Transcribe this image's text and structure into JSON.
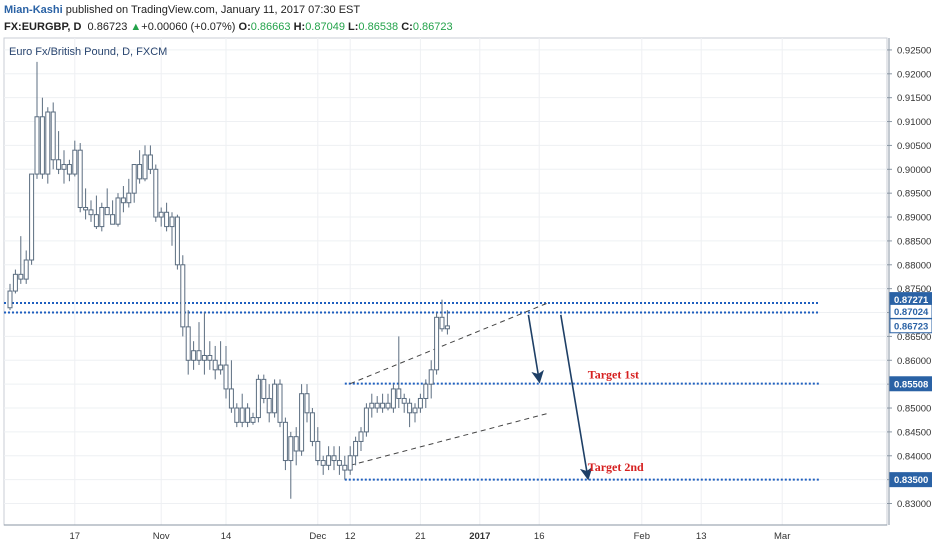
{
  "header": {
    "author": "Mian-Kashi",
    "published": "published on TradingView.com, January 11, 2017 07:30 EST",
    "symbol": "FX:EURGBP, D",
    "last": "0.86723",
    "change": "+0.00060 (+0.07%)",
    "o_label": "O:",
    "o": "0.86663",
    "h_label": "H:",
    "h": "0.87049",
    "l_label": "L:",
    "l": "0.86538",
    "c_label": "C:",
    "c": "0.86723"
  },
  "chart_title": "Euro Fx/British Pound, D, FXCM",
  "colors": {
    "candle_up": "#ffffff",
    "candle_down": "#ffffff",
    "candle_stroke": "#5b6d80",
    "level_line": "#1f5fbf",
    "arrow": "#1e3f66",
    "annotation_text": "#d62020",
    "price_tag": "#2a62a5"
  },
  "chart_data": {
    "type": "candlestick",
    "title": "Euro Fx/British Pound, D, FXCM",
    "y_ticks": [
      "0.92500",
      "0.92000",
      "0.91500",
      "0.91000",
      "0.90500",
      "0.90000",
      "0.89500",
      "0.89000",
      "0.88500",
      "0.88000",
      "0.87500",
      "0.87000",
      "0.86500",
      "0.86000",
      "0.85500",
      "0.85000",
      "0.84500",
      "0.84000",
      "0.83500",
      "0.83000"
    ],
    "ylim": [
      0.8255,
      0.9275
    ],
    "x_labels": [
      "17",
      "Nov",
      "14",
      "Dec",
      "12",
      "21",
      "2017",
      "16",
      "Feb",
      "13",
      "Mar"
    ],
    "x_label_positions_idx": [
      12,
      28,
      40,
      57,
      63,
      76,
      87,
      98,
      117,
      128,
      143
    ],
    "price_tags": [
      {
        "label": "0.87271",
        "value": 0.87271,
        "filled": true
      },
      {
        "label": "0.87024",
        "value": 0.87024,
        "filled": false
      },
      {
        "label": "0.86723",
        "value": 0.86723,
        "filled": false
      },
      {
        "label": "0.85508",
        "value": 0.85508,
        "filled": true
      },
      {
        "label": "0.83500",
        "value": 0.835,
        "filled": true
      }
    ],
    "levels": [
      {
        "value": 0.872,
        "x_start_idx": -1,
        "x_end_idx": 150
      },
      {
        "value": 0.87,
        "x_start_idx": -1,
        "x_end_idx": 150
      },
      {
        "value": 0.8551,
        "x_start_idx": 62,
        "x_end_idx": 150
      },
      {
        "value": 0.835,
        "x_start_idx": 62,
        "x_end_idx": 150
      }
    ],
    "channel": {
      "upper": [
        [
          63,
          0.8551
        ],
        [
          100,
          0.8722
        ]
      ],
      "lower": [
        [
          63,
          0.838
        ],
        [
          100,
          0.849
        ]
      ]
    },
    "annotations": [
      {
        "text": "Target 1st",
        "idx": 107,
        "value": 0.8562
      },
      {
        "text": "Target 2nd",
        "idx": 107,
        "value": 0.8368
      }
    ],
    "arrows": [
      {
        "from": [
          96,
          0.8695
        ],
        "to": [
          98,
          0.8558
        ]
      },
      {
        "from": [
          102,
          0.8695
        ],
        "to": [
          107,
          0.8355
        ]
      }
    ],
    "candles": [
      [
        0.871,
        0.876,
        0.8705,
        0.8745
      ],
      [
        0.8745,
        0.879,
        0.874,
        0.878
      ],
      [
        0.878,
        0.886,
        0.876,
        0.877
      ],
      [
        0.877,
        0.883,
        0.876,
        0.881
      ],
      [
        0.881,
        0.899,
        0.88,
        0.899
      ],
      [
        0.899,
        0.9225,
        0.898,
        0.911
      ],
      [
        0.911,
        0.915,
        0.898,
        0.899
      ],
      [
        0.899,
        0.913,
        0.897,
        0.912
      ],
      [
        0.912,
        0.914,
        0.9,
        0.902
      ],
      [
        0.902,
        0.908,
        0.899,
        0.9
      ],
      [
        0.9,
        0.904,
        0.897,
        0.901
      ],
      [
        0.901,
        0.902,
        0.8975,
        0.899
      ],
      [
        0.899,
        0.906,
        0.8985,
        0.904
      ],
      [
        0.904,
        0.9055,
        0.891,
        0.892
      ],
      [
        0.892,
        0.896,
        0.8895,
        0.8915
      ],
      [
        0.8915,
        0.8935,
        0.889,
        0.8905
      ],
      [
        0.8905,
        0.8945,
        0.8875,
        0.888
      ],
      [
        0.888,
        0.893,
        0.887,
        0.892
      ],
      [
        0.892,
        0.896,
        0.891,
        0.8905
      ],
      [
        0.8905,
        0.8935,
        0.8885,
        0.8885
      ],
      [
        0.8885,
        0.895,
        0.888,
        0.894
      ],
      [
        0.894,
        0.8965,
        0.891,
        0.893
      ],
      [
        0.893,
        0.898,
        0.892,
        0.895
      ],
      [
        0.895,
        0.901,
        0.893,
        0.901
      ],
      [
        0.901,
        0.904,
        0.897,
        0.898
      ],
      [
        0.898,
        0.905,
        0.8975,
        0.903
      ],
      [
        0.903,
        0.905,
        0.899,
        0.9
      ],
      [
        0.9,
        0.901,
        0.889,
        0.89
      ],
      [
        0.89,
        0.892,
        0.888,
        0.891
      ],
      [
        0.891,
        0.893,
        0.887,
        0.888
      ],
      [
        0.888,
        0.891,
        0.884,
        0.89
      ],
      [
        0.89,
        0.8905,
        0.879,
        0.88
      ],
      [
        0.88,
        0.882,
        0.865,
        0.867
      ],
      [
        0.867,
        0.8705,
        0.857,
        0.86
      ],
      [
        0.86,
        0.864,
        0.858,
        0.862
      ],
      [
        0.862,
        0.868,
        0.859,
        0.86
      ],
      [
        0.86,
        0.87,
        0.857,
        0.861
      ],
      [
        0.861,
        0.864,
        0.858,
        0.86
      ],
      [
        0.86,
        0.863,
        0.856,
        0.858
      ],
      [
        0.858,
        0.864,
        0.857,
        0.859
      ],
      [
        0.859,
        0.863,
        0.852,
        0.854
      ],
      [
        0.854,
        0.86,
        0.849,
        0.85
      ],
      [
        0.85,
        0.851,
        0.846,
        0.847
      ],
      [
        0.847,
        0.853,
        0.846,
        0.85
      ],
      [
        0.85,
        0.851,
        0.846,
        0.847
      ],
      [
        0.847,
        0.849,
        0.8465,
        0.848
      ],
      [
        0.848,
        0.857,
        0.847,
        0.856
      ],
      [
        0.856,
        0.857,
        0.851,
        0.852
      ],
      [
        0.852,
        0.855,
        0.847,
        0.849
      ],
      [
        0.849,
        0.856,
        0.848,
        0.855
      ],
      [
        0.855,
        0.856,
        0.846,
        0.847
      ],
      [
        0.847,
        0.848,
        0.837,
        0.839
      ],
      [
        0.839,
        0.845,
        0.831,
        0.844
      ],
      [
        0.844,
        0.846,
        0.838,
        0.841
      ],
      [
        0.841,
        0.855,
        0.84,
        0.853
      ],
      [
        0.853,
        0.855,
        0.847,
        0.849
      ],
      [
        0.849,
        0.85,
        0.842,
        0.843
      ],
      [
        0.843,
        0.846,
        0.838,
        0.839
      ],
      [
        0.839,
        0.84,
        0.836,
        0.838
      ],
      [
        0.838,
        0.842,
        0.837,
        0.84
      ],
      [
        0.84,
        0.842,
        0.837,
        0.839
      ],
      [
        0.839,
        0.842,
        0.836,
        0.838
      ],
      [
        0.838,
        0.84,
        0.835,
        0.837
      ],
      [
        0.837,
        0.842,
        0.836,
        0.84
      ],
      [
        0.84,
        0.844,
        0.838,
        0.843
      ],
      [
        0.843,
        0.846,
        0.841,
        0.845
      ],
      [
        0.845,
        0.851,
        0.844,
        0.85
      ],
      [
        0.85,
        0.853,
        0.848,
        0.851
      ],
      [
        0.851,
        0.8525,
        0.849,
        0.85
      ],
      [
        0.85,
        0.853,
        0.849,
        0.851
      ],
      [
        0.851,
        0.853,
        0.8495,
        0.85
      ],
      [
        0.85,
        0.855,
        0.849,
        0.854
      ],
      [
        0.854,
        0.865,
        0.85,
        0.852
      ],
      [
        0.852,
        0.853,
        0.849,
        0.851
      ],
      [
        0.851,
        0.852,
        0.846,
        0.849
      ],
      [
        0.849,
        0.851,
        0.847,
        0.85
      ],
      [
        0.85,
        0.853,
        0.849,
        0.852
      ],
      [
        0.852,
        0.856,
        0.85,
        0.855
      ],
      [
        0.855,
        0.86,
        0.852,
        0.858
      ],
      [
        0.858,
        0.87,
        0.857,
        0.869
      ],
      [
        0.869,
        0.8727,
        0.866,
        0.8666
      ],
      [
        0.8666,
        0.8705,
        0.8654,
        0.8672
      ]
    ]
  }
}
